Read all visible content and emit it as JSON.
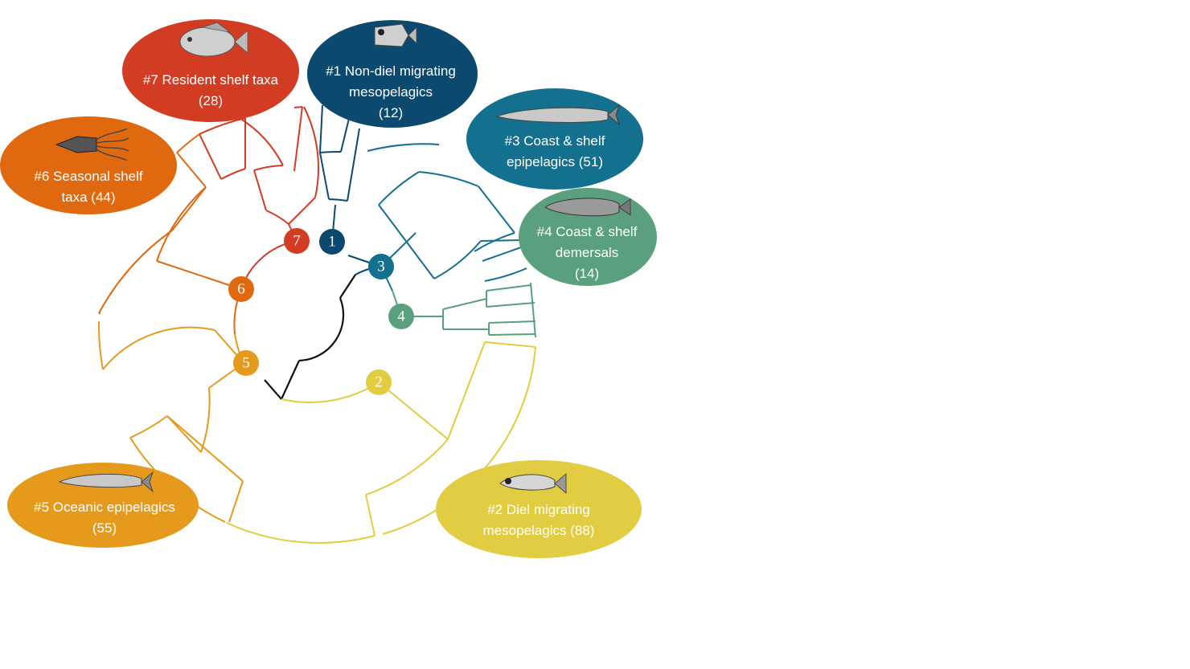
{
  "diagram": {
    "type": "circular-dendrogram",
    "clusters": [
      {
        "id": "1",
        "label_lines": [
          "#1 Non-diel migrating",
          "mesopelagics",
          "(12)"
        ],
        "color": "#0b4a6e",
        "icon": "hatchetfish-icon"
      },
      {
        "id": "2",
        "label_lines": [
          "#2 Diel migrating",
          "mesopelagics (88)"
        ],
        "color": "#e1cc42",
        "icon": "lanternfish-icon"
      },
      {
        "id": "3",
        "label_lines": [
          "#3 Coast & shelf",
          "epipelagics (51)"
        ],
        "color": "#14708f",
        "icon": "saury-icon"
      },
      {
        "id": "4",
        "label_lines": [
          "#4 Coast & shelf",
          "demersals",
          "(14)"
        ],
        "color": "#5aa07e",
        "icon": "cod-icon"
      },
      {
        "id": "5",
        "label_lines": [
          "#5 Oceanic epipelagics",
          "(55)"
        ],
        "color": "#e69a1c",
        "icon": "herring-icon"
      },
      {
        "id": "6",
        "label_lines": [
          "#6 Seasonal shelf",
          "taxa (44)"
        ],
        "color": "#e0690f",
        "icon": "squid-icon"
      },
      {
        "id": "7",
        "label_lines": [
          "#7 Resident shelf taxa",
          "(28)"
        ],
        "color": "#d23c22",
        "icon": "sunfish-icon"
      }
    ],
    "root_color": "#111111"
  }
}
